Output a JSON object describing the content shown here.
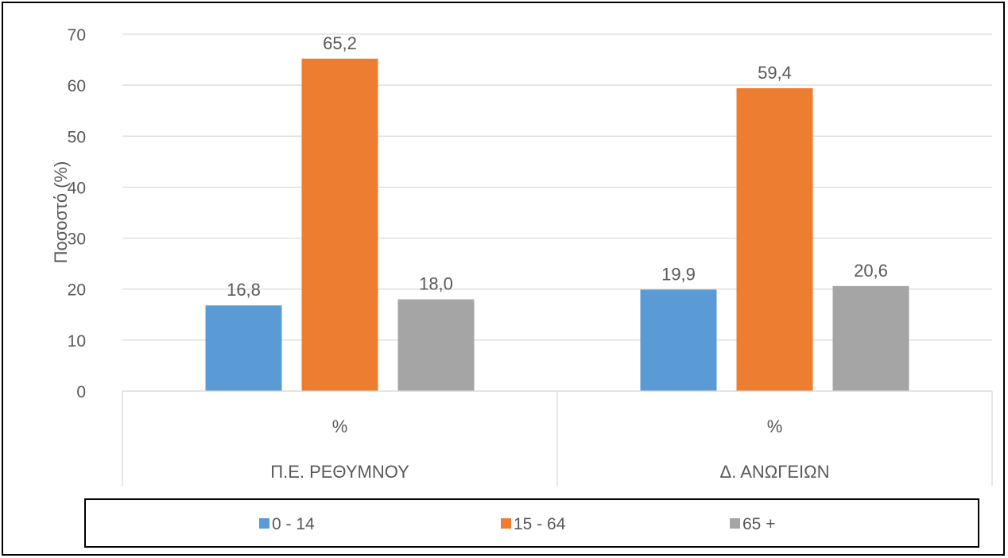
{
  "chart_data": {
    "type": "bar",
    "groups": [
      {
        "top_label": "%",
        "bottom_label": "Π.Ε. ΡΕΘΥΜΝΟΥ"
      },
      {
        "top_label": "%",
        "bottom_label": "Δ. ΑΝΩΓΕΙΩΝ"
      }
    ],
    "series": [
      {
        "name": "0 - 14",
        "color": "#5B9BD5",
        "values": [
          16.8,
          19.9
        ],
        "labels": [
          "16,8",
          "19,9"
        ]
      },
      {
        "name": "15 - 64",
        "color": "#ED7D31",
        "values": [
          65.2,
          59.4
        ],
        "labels": [
          "65,2",
          "59,4"
        ]
      },
      {
        "name": "65 +",
        "color": "#A5A5A5",
        "values": [
          18.0,
          20.6
        ],
        "labels": [
          "18,0",
          "20,6"
        ]
      }
    ],
    "ylabel": "Ποσοστό (%)",
    "ylim": [
      0,
      70
    ],
    "yticks": [
      0,
      10,
      20,
      30,
      40,
      50,
      60,
      70
    ],
    "grid": true,
    "legend_position": "bottom"
  }
}
